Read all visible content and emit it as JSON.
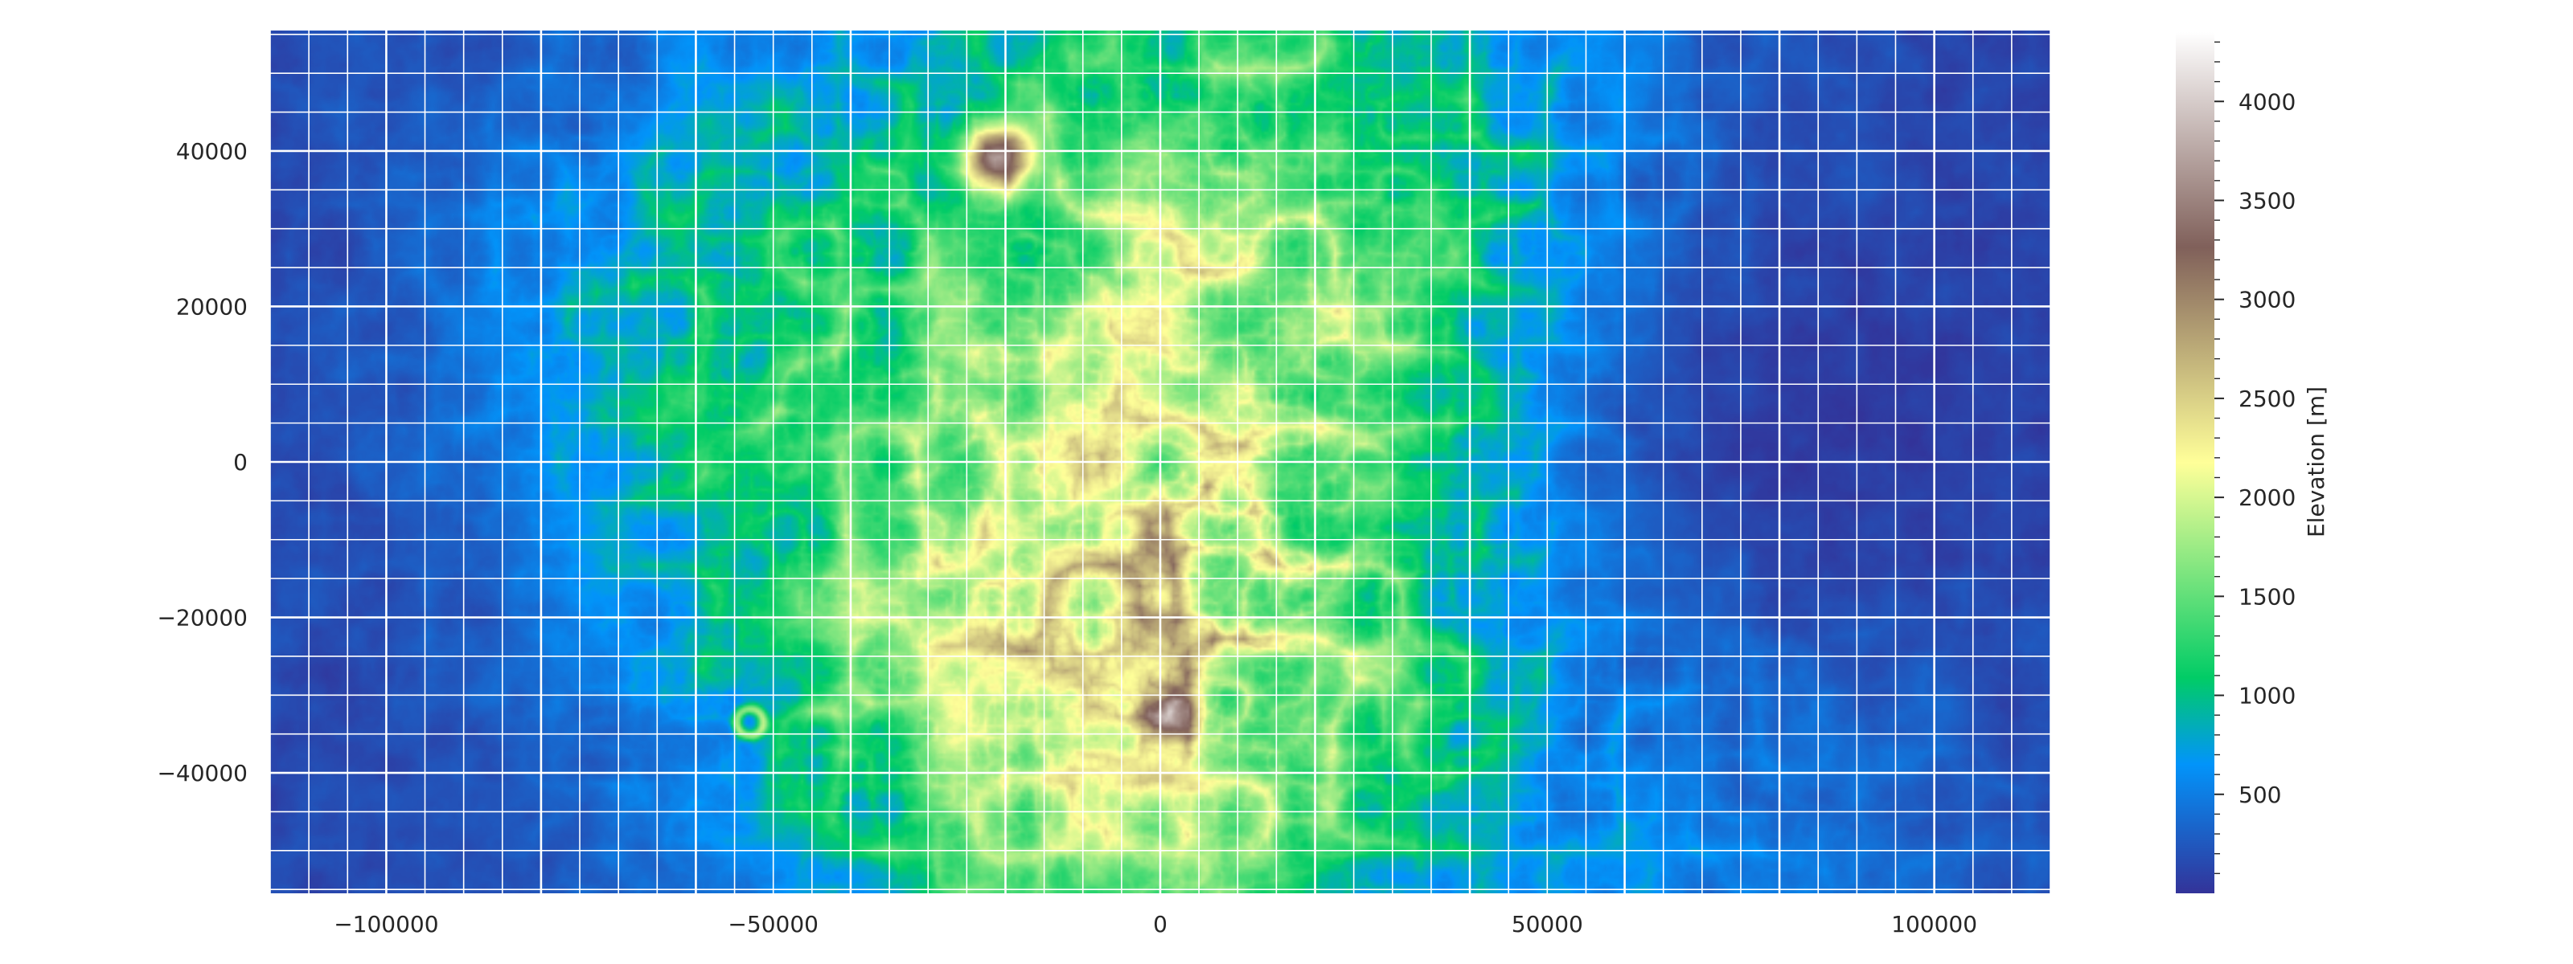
{
  "chart_data": {
    "type": "heatmap",
    "title": "",
    "xlabel": "",
    "ylabel": "",
    "xlim": [
      -115000,
      115000
    ],
    "ylim": [
      -55500,
      55500
    ],
    "x_ticks": [
      -100000,
      -50000,
      0,
      50000,
      100000
    ],
    "x_tick_labels": [
      "−100000",
      "−50000",
      "0",
      "50000",
      "100000"
    ],
    "y_ticks": [
      40000,
      20000,
      0,
      -20000,
      -40000
    ],
    "y_tick_labels": [
      "40000",
      "20000",
      "0",
      "−20000",
      "−40000"
    ],
    "grid": "on",
    "grid_spacing_minor": 5000,
    "grid_spacing_major": 20000,
    "colormap": "terrain",
    "colorbar": {
      "label": "Elevation [m]",
      "range": [
        0,
        4350
      ],
      "ticks": [
        500,
        1000,
        1500,
        2000,
        2500,
        3000,
        3500,
        4000
      ],
      "tick_labels": [
        "500",
        "1000",
        "1500",
        "2000",
        "2500",
        "3000",
        "3500",
        "4000"
      ],
      "minor_tick_step": 100
    },
    "features": [
      {
        "kind": "peak",
        "x": -21000,
        "y": 39000,
        "elevation": 4350
      },
      {
        "kind": "peak",
        "x": 1000,
        "y": -33000,
        "elevation": 3700
      },
      {
        "kind": "crater",
        "x": -53000,
        "y": -33500,
        "elevation": 1900
      }
    ]
  },
  "colors": {
    "background": "#ffffff",
    "grid": "#ffffff",
    "text": "#262626",
    "terrain_stops": [
      "#333399",
      "#0294fa",
      "#01cc66",
      "#ffff99",
      "#80605a",
      "#ffffff"
    ]
  }
}
